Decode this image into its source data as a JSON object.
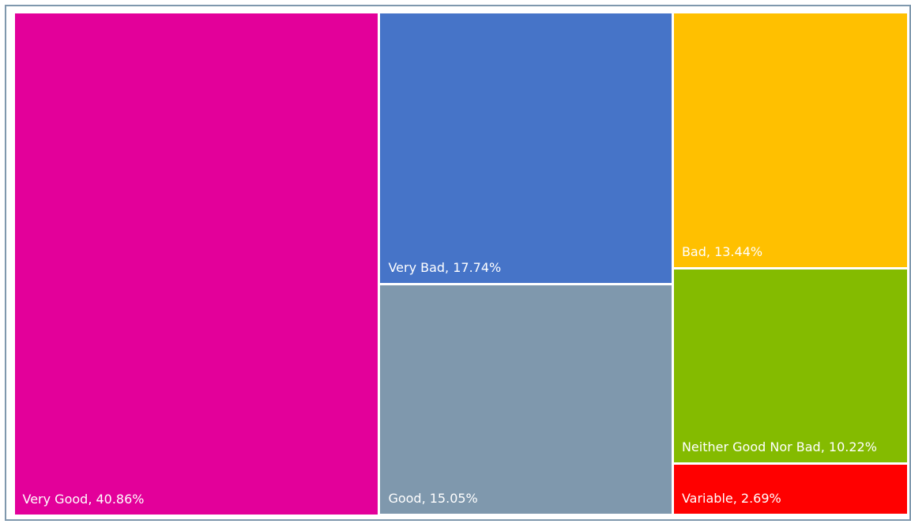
{
  "chart_data": {
    "type": "treemap",
    "values": [
      40.86,
      17.74,
      15.05,
      13.44,
      10.22,
      2.69
    ],
    "value_labels": [
      "Very Good, 40.86%",
      "Very Bad, 17.74%",
      "Good, 15.05%",
      "Bad, 13.44%",
      "Neither Good Nor Bad, 10.22%",
      "Variable, 2.69%"
    ],
    "colors": [
      "#e3009a",
      "#4674c8",
      "#7f98ad",
      "#ffc000",
      "#84bb00",
      "#ff0000"
    ]
  }
}
